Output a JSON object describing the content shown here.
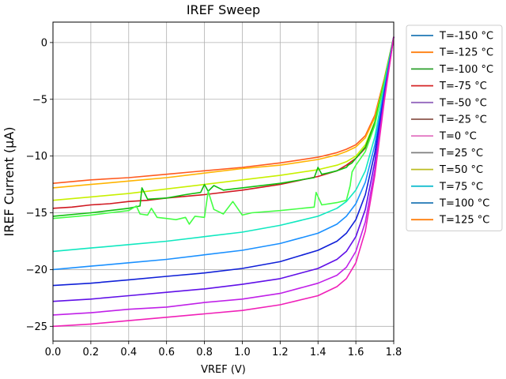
{
  "chart_data": {
    "type": "line",
    "title": "IREF Sweep",
    "xlabel": "VREF (V)",
    "ylabel": "IREF Current (µA)",
    "xlim": [
      0.0,
      1.8
    ],
    "ylim": [
      -26.3,
      1.8
    ],
    "xticks": [
      "0.0",
      "0.2",
      "0.4",
      "0.6",
      "0.8",
      "1.0",
      "1.2",
      "1.4",
      "1.6",
      "1.8"
    ],
    "yticks": [
      "0",
      "−5",
      "−10",
      "−15",
      "−20",
      "−25"
    ],
    "grid": true,
    "legend_position": "outside-right",
    "legend": [
      {
        "label": "T=-150 °C",
        "color": "#1f77b4"
      },
      {
        "label": "T=-125 °C",
        "color": "#ff7f0e"
      },
      {
        "label": "T=-100 °C",
        "color": "#2ca02c"
      },
      {
        "label": "T=-75 °C",
        "color": "#d62728"
      },
      {
        "label": "T=-50 °C",
        "color": "#9467bd"
      },
      {
        "label": "T=-25 °C",
        "color": "#8c564b"
      },
      {
        "label": "T=0 °C",
        "color": "#e377c2"
      },
      {
        "label": "T=25 °C",
        "color": "#7f7f7f"
      },
      {
        "label": "T=50 °C",
        "color": "#bcbd22"
      },
      {
        "label": "T=75 °C",
        "color": "#17becf"
      },
      {
        "label": "T=100 °C",
        "color": "#1f77b4"
      },
      {
        "label": "T=125 °C",
        "color": "#ff7f0e"
      }
    ],
    "series": [
      {
        "color": "#ff5a1e",
        "x": [
          0.0,
          0.2,
          0.4,
          0.6,
          0.8,
          1.0,
          1.2,
          1.4,
          1.5,
          1.55,
          1.6,
          1.65,
          1.7,
          1.75,
          1.8
        ],
        "y": [
          -12.4,
          -12.1,
          -11.9,
          -11.6,
          -11.3,
          -11.0,
          -10.6,
          -10.1,
          -9.7,
          -9.4,
          -9.0,
          -8.2,
          -6.4,
          -3.2,
          0.5
        ]
      },
      {
        "color": "#ffb400",
        "x": [
          0.0,
          0.2,
          0.4,
          0.6,
          0.8,
          1.0,
          1.2,
          1.4,
          1.5,
          1.55,
          1.6,
          1.65,
          1.7,
          1.75,
          1.8
        ],
        "y": [
          -12.8,
          -12.5,
          -12.2,
          -11.9,
          -11.5,
          -11.1,
          -10.8,
          -10.3,
          -9.9,
          -9.6,
          -9.2,
          -8.4,
          -6.6,
          -3.3,
          0.5
        ]
      },
      {
        "color": "#d01820",
        "x": [
          0.0,
          0.1,
          0.2,
          0.3,
          0.4,
          0.5,
          0.6,
          0.8,
          1.0,
          1.2,
          1.4,
          1.5,
          1.55,
          1.6,
          1.65,
          1.7,
          1.75,
          1.8
        ],
        "y": [
          -14.6,
          -14.5,
          -14.3,
          -14.2,
          -14.0,
          -13.9,
          -13.7,
          -13.4,
          -13.0,
          -12.5,
          -11.8,
          -11.3,
          -10.8,
          -10.2,
          -9.3,
          -7.2,
          -3.5,
          0.5
        ]
      },
      {
        "color": "#c8f000",
        "x": [
          0.0,
          0.2,
          0.4,
          0.6,
          0.8,
          1.0,
          1.2,
          1.4,
          1.5,
          1.55,
          1.6,
          1.65,
          1.7,
          1.75,
          1.8
        ],
        "y": [
          -13.9,
          -13.6,
          -13.3,
          -12.9,
          -12.5,
          -12.1,
          -11.7,
          -11.2,
          -10.8,
          -10.5,
          -10.0,
          -9.0,
          -7.0,
          -3.4,
          0.5
        ]
      },
      {
        "color": "#10c010",
        "x": [
          0.0,
          0.2,
          0.4,
          0.46,
          0.47,
          0.5,
          0.6,
          0.7,
          0.78,
          0.8,
          0.82,
          0.85,
          0.9,
          0.95,
          1.0,
          1.2,
          1.38,
          1.4,
          1.42,
          1.45,
          1.5,
          1.55,
          1.56,
          1.58,
          1.6,
          1.65,
          1.7,
          1.75,
          1.8
        ],
        "y": [
          -15.3,
          -15.0,
          -14.6,
          -14.4,
          -12.8,
          -13.8,
          -13.7,
          -13.4,
          -13.2,
          -12.5,
          -13.1,
          -12.6,
          -13.0,
          -12.9,
          -12.8,
          -12.4,
          -11.9,
          -11.0,
          -11.6,
          -11.5,
          -11.3,
          -11.0,
          -10.8,
          -10.6,
          -10.2,
          -9.2,
          -7.0,
          -3.4,
          0.5
        ]
      },
      {
        "color": "#44ff44",
        "x": [
          0.0,
          0.2,
          0.3,
          0.4,
          0.44,
          0.46,
          0.5,
          0.52,
          0.55,
          0.6,
          0.65,
          0.7,
          0.72,
          0.75,
          0.8,
          0.82,
          0.85,
          0.9,
          0.95,
          1.0,
          1.05,
          1.2,
          1.38,
          1.39,
          1.42,
          1.5,
          1.55,
          1.57,
          1.58,
          1.6,
          1.65,
          1.7,
          1.75,
          1.8
        ],
        "y": [
          -15.5,
          -15.2,
          -15.0,
          -14.8,
          -14.4,
          -15.1,
          -15.2,
          -14.6,
          -15.4,
          -15.5,
          -15.6,
          -15.4,
          -16.0,
          -15.3,
          -15.4,
          -13.1,
          -14.7,
          -15.1,
          -14.0,
          -15.2,
          -15.0,
          -14.8,
          -14.5,
          -13.2,
          -14.3,
          -14.1,
          -13.9,
          -12.6,
          -11.4,
          -10.8,
          -9.6,
          -7.3,
          -3.5,
          0.5
        ]
      },
      {
        "color": "#10e8c0",
        "x": [
          0.0,
          0.2,
          0.4,
          0.6,
          0.8,
          1.0,
          1.2,
          1.4,
          1.5,
          1.55,
          1.6,
          1.65,
          1.7,
          1.75,
          1.8
        ],
        "y": [
          -18.4,
          -18.1,
          -17.8,
          -17.5,
          -17.1,
          -16.7,
          -16.1,
          -15.3,
          -14.6,
          -14.0,
          -13.0,
          -11.3,
          -8.3,
          -3.9,
          0.5
        ]
      },
      {
        "color": "#1a90ff",
        "x": [
          0.0,
          0.2,
          0.4,
          0.6,
          0.8,
          1.0,
          1.2,
          1.4,
          1.5,
          1.55,
          1.6,
          1.65,
          1.7,
          1.75,
          1.8
        ],
        "y": [
          -20.0,
          -19.7,
          -19.4,
          -19.1,
          -18.7,
          -18.3,
          -17.7,
          -16.8,
          -16.0,
          -15.3,
          -14.2,
          -12.3,
          -9.0,
          -4.2,
          0.5
        ]
      },
      {
        "color": "#1020d8",
        "x": [
          0.0,
          0.2,
          0.4,
          0.6,
          0.8,
          1.0,
          1.2,
          1.4,
          1.5,
          1.55,
          1.6,
          1.65,
          1.7,
          1.75,
          1.8
        ],
        "y": [
          -21.4,
          -21.2,
          -20.9,
          -20.6,
          -20.3,
          -19.9,
          -19.3,
          -18.3,
          -17.5,
          -16.8,
          -15.6,
          -13.4,
          -9.7,
          -4.5,
          0.5
        ]
      },
      {
        "color": "#6010e8",
        "x": [
          0.0,
          0.2,
          0.4,
          0.6,
          0.8,
          1.0,
          1.2,
          1.4,
          1.5,
          1.55,
          1.6,
          1.65,
          1.7,
          1.75,
          1.8
        ],
        "y": [
          -22.8,
          -22.6,
          -22.3,
          -22.0,
          -21.7,
          -21.3,
          -20.8,
          -19.9,
          -19.1,
          -18.4,
          -17.1,
          -14.7,
          -10.5,
          -4.8,
          0.5
        ]
      },
      {
        "color": "#c020e8",
        "x": [
          0.0,
          0.2,
          0.4,
          0.6,
          0.8,
          1.0,
          1.2,
          1.4,
          1.5,
          1.55,
          1.6,
          1.65,
          1.7,
          1.75,
          1.8
        ],
        "y": [
          -24.0,
          -23.8,
          -23.5,
          -23.3,
          -22.9,
          -22.6,
          -22.1,
          -21.2,
          -20.5,
          -19.8,
          -18.4,
          -15.8,
          -11.2,
          -5.0,
          0.5
        ]
      },
      {
        "color": "#f020b8",
        "x": [
          0.0,
          0.2,
          0.4,
          0.6,
          0.8,
          1.0,
          1.2,
          1.4,
          1.5,
          1.55,
          1.6,
          1.65,
          1.7,
          1.75,
          1.8
        ],
        "y": [
          -25.0,
          -24.8,
          -24.5,
          -24.2,
          -23.9,
          -23.6,
          -23.1,
          -22.3,
          -21.5,
          -20.8,
          -19.4,
          -16.6,
          -11.7,
          -5.2,
          0.5
        ]
      }
    ]
  }
}
